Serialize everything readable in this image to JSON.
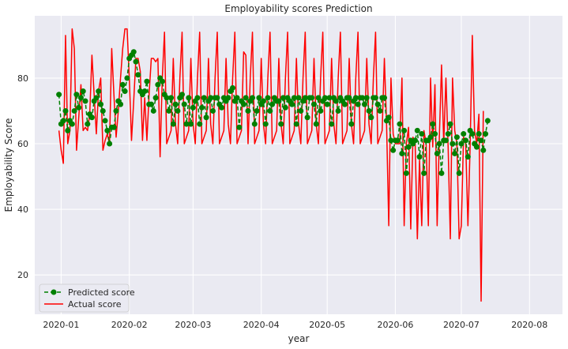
{
  "chart_data": {
    "type": "line",
    "title": "Employability scores Prediction",
    "xlabel": "year",
    "ylabel": "Employability Score",
    "xlim": [
      "2019-12-20",
      "2020-08-16"
    ],
    "ylim": [
      8,
      99
    ],
    "x_ticks": [
      {
        "date": "2020-01-01",
        "label": "2020-01"
      },
      {
        "date": "2020-02-01",
        "label": "2020-02"
      },
      {
        "date": "2020-03-01",
        "label": "2020-03"
      },
      {
        "date": "2020-04-01",
        "label": "2020-04"
      },
      {
        "date": "2020-05-01",
        "label": "2020-05"
      },
      {
        "date": "2020-06-01",
        "label": "2020-06"
      },
      {
        "date": "2020-07-01",
        "label": "2020-07"
      },
      {
        "date": "2020-08-01",
        "label": "2020-08"
      }
    ],
    "y_ticks": [
      20,
      40,
      60,
      80
    ],
    "grid": true,
    "legend_position": "lower-left",
    "series": [
      {
        "name": "Predicted score",
        "color": "#008000",
        "style": "dashed-with-circle-markers",
        "start_date": "2019-12-31",
        "values": [
          75,
          66,
          67,
          70,
          64,
          67,
          66,
          70,
          75,
          71,
          74,
          76,
          73,
          66,
          69,
          68,
          73,
          74,
          76,
          72,
          70,
          67,
          64,
          60,
          65,
          65,
          70,
          73,
          72,
          78,
          76,
          80,
          86,
          87,
          88,
          85,
          81,
          76,
          75,
          76,
          79,
          72,
          72,
          70,
          74,
          78,
          80,
          79,
          75,
          74,
          70,
          74,
          66,
          72,
          70,
          74,
          75,
          72,
          66,
          74,
          66,
          71,
          73,
          74,
          66,
          71,
          74,
          68,
          73,
          74,
          70,
          74,
          74,
          72,
          71,
          74,
          73,
          74,
          76,
          77,
          73,
          74,
          65,
          73,
          72,
          74,
          70,
          73,
          74,
          66,
          70,
          74,
          72,
          73,
          66,
          74,
          70,
          72,
          74,
          73,
          73,
          66,
          74,
          71,
          74,
          73,
          72,
          74,
          66,
          74,
          70,
          73,
          74,
          68,
          74,
          74,
          72,
          66,
          74,
          70,
          73,
          74,
          72,
          74,
          66,
          74,
          73,
          70,
          74,
          73,
          72,
          74,
          74,
          66,
          73,
          74,
          72,
          74,
          74,
          72,
          74,
          70,
          68,
          74,
          74,
          72,
          70,
          74,
          74,
          67,
          68,
          61,
          58,
          61,
          61,
          66,
          57,
          64,
          51,
          59,
          61,
          60,
          61,
          64,
          56,
          63,
          51,
          61,
          61,
          62,
          66,
          63,
          57,
          60,
          51,
          61,
          61,
          63,
          66,
          60,
          57,
          62,
          51,
          60,
          63,
          61,
          56,
          64,
          63,
          60,
          59,
          63,
          61,
          58,
          63,
          67
        ]
      },
      {
        "name": "Actual score",
        "color": "#ff0000",
        "style": "solid",
        "start_date": "2019-12-31",
        "values": [
          64,
          58,
          54,
          93,
          60,
          64,
          95,
          89,
          58,
          68,
          78,
          64,
          65,
          64,
          69,
          87,
          75,
          63,
          76,
          80,
          58,
          61,
          63,
          60,
          89,
          75,
          62,
          70,
          80,
          89,
          95,
          95,
          80,
          61,
          73,
          86,
          86,
          82,
          61,
          74,
          61,
          75,
          86,
          86,
          85,
          86,
          56,
          80,
          94,
          60,
          62,
          64,
          86,
          66,
          60,
          80,
          94,
          60,
          62,
          64,
          86,
          66,
          60,
          80,
          94,
          60,
          62,
          64,
          86,
          66,
          60,
          80,
          94,
          60,
          62,
          64,
          86,
          66,
          60,
          80,
          94,
          60,
          62,
          64,
          88,
          87,
          60,
          80,
          94,
          60,
          62,
          64,
          86,
          66,
          60,
          80,
          94,
          60,
          62,
          64,
          86,
          66,
          60,
          80,
          94,
          60,
          62,
          64,
          86,
          66,
          60,
          80,
          94,
          60,
          62,
          64,
          86,
          66,
          60,
          80,
          94,
          60,
          62,
          64,
          86,
          66,
          60,
          80,
          94,
          60,
          62,
          64,
          86,
          66,
          60,
          80,
          94,
          60,
          62,
          64,
          86,
          66,
          60,
          80,
          94,
          60,
          62,
          64,
          86,
          66,
          35,
          80,
          63,
          60,
          60,
          60,
          80,
          35,
          60,
          65,
          34,
          62,
          60,
          31,
          55,
          35,
          64,
          60,
          35,
          80,
          59,
          78,
          35,
          62,
          84,
          60,
          80,
          59,
          31,
          80,
          64,
          60,
          31,
          35,
          62,
          60,
          35,
          59,
          93,
          64,
          60,
          69,
          12,
          70
        ]
      }
    ]
  }
}
